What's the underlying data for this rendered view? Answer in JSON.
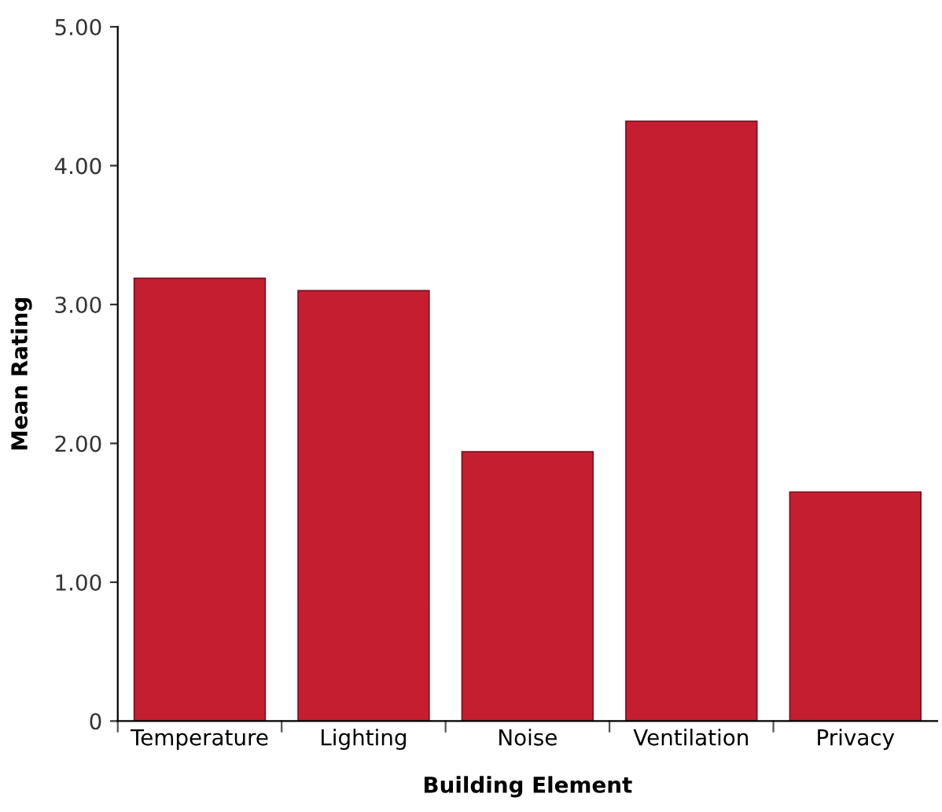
{
  "chart_data": {
    "type": "bar",
    "xlabel": "Building Element",
    "ylabel": "Mean Rating",
    "categories": [
      "Temperature",
      "Lighting",
      "Noise",
      "Ventilation",
      "Privacy"
    ],
    "values": [
      3.19,
      3.1,
      1.94,
      4.32,
      1.65
    ],
    "color": "#c41e30",
    "ylim": [
      0,
      5
    ],
    "yticks": [
      0,
      {
        "value": 1,
        "label": "1.00"
      },
      {
        "value": 2,
        "label": "2.00"
      },
      {
        "value": 3,
        "label": "3.00"
      },
      {
        "value": 4,
        "label": "4.00"
      },
      {
        "value": 5,
        "label": "5.00"
      }
    ],
    "grid": false,
    "legend": false
  }
}
